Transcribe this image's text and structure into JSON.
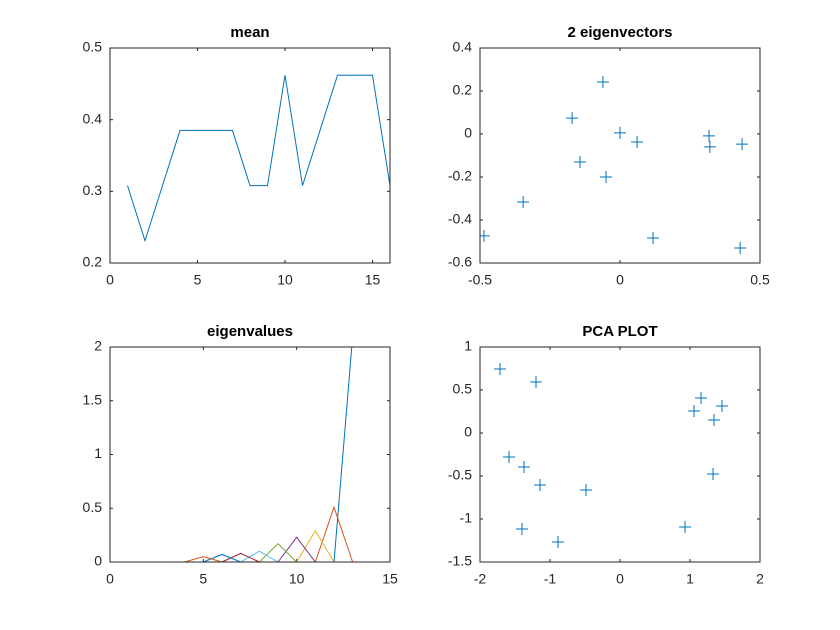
{
  "chart_data": [
    {
      "type": "line",
      "title": "mean",
      "x": [
        1,
        2,
        3,
        4,
        5,
        6,
        7,
        8,
        9,
        10,
        11,
        12,
        13,
        14,
        15,
        16
      ],
      "values": [
        0.308,
        0.231,
        0.308,
        0.385,
        0.385,
        0.385,
        0.385,
        0.308,
        0.308,
        0.462,
        0.308,
        0.385,
        0.462,
        0.462,
        0.462,
        0.308
      ],
      "color": "#0072BD",
      "xlim": [
        0,
        16
      ],
      "ylim": [
        0.2,
        0.5
      ],
      "xticks": [
        0,
        5,
        10,
        15
      ],
      "yticks": [
        0.2,
        0.3,
        0.4,
        0.5
      ]
    },
    {
      "type": "scatter",
      "title": "2 eigenvectors",
      "marker": "+",
      "color": "#0072BD",
      "x": [
        -0.486,
        -0.346,
        -0.171,
        -0.143,
        -0.061,
        -0.05,
        0.0,
        0.061,
        0.118,
        0.318,
        0.321,
        0.436,
        0.429
      ],
      "values": [
        -0.474,
        -0.316,
        0.074,
        -0.13,
        0.242,
        -0.2,
        0.005,
        -0.037,
        -0.484,
        -0.009,
        -0.06,
        -0.047,
        -0.53
      ],
      "xlim": [
        -0.5,
        0.5
      ],
      "ylim": [
        -0.6,
        0.4
      ],
      "xticks": [
        -0.5,
        0,
        0.5
      ],
      "yticks": [
        -0.6,
        -0.4,
        -0.2,
        0,
        0.2,
        0.4
      ]
    },
    {
      "type": "line",
      "title": "eigenvalues",
      "x": [
        1,
        2,
        3,
        4,
        5,
        6,
        7,
        8,
        9,
        10,
        11,
        12,
        13
      ],
      "series": [
        {
          "color": "#0072BD",
          "values": [
            0,
            0,
            0,
            0,
            0,
            0,
            0,
            0,
            0,
            0,
            0,
            0,
            2.1
          ]
        },
        {
          "color": "#D95319",
          "values": [
            0,
            0,
            0,
            0,
            0,
            0,
            0,
            0,
            0,
            0,
            0,
            0.51,
            0
          ]
        },
        {
          "color": "#EDB120",
          "values": [
            0,
            0,
            0,
            0,
            0,
            0,
            0,
            0,
            0,
            0,
            0.29,
            0,
            0
          ]
        },
        {
          "color": "#7E2F8E",
          "values": [
            0,
            0,
            0,
            0,
            0,
            0,
            0,
            0,
            0,
            0.23,
            0,
            0,
            0
          ]
        },
        {
          "color": "#77AC30",
          "values": [
            0,
            0,
            0,
            0,
            0,
            0,
            0,
            0,
            0.17,
            0,
            0,
            0,
            0
          ]
        },
        {
          "color": "#4DBEEE",
          "values": [
            0,
            0,
            0,
            0,
            0,
            0,
            0,
            0.1,
            0,
            0,
            0,
            0,
            0
          ]
        },
        {
          "color": "#A2142F",
          "values": [
            0,
            0,
            0,
            0,
            0,
            0,
            0.08,
            0,
            0,
            0,
            0,
            0,
            0
          ]
        },
        {
          "color": "#0072BD",
          "values": [
            0,
            0,
            0,
            0,
            0,
            0.07,
            0,
            0,
            0,
            0,
            0,
            0,
            0
          ]
        },
        {
          "color": "#D95319",
          "values": [
            0,
            0,
            0,
            0,
            0.05,
            0,
            0,
            0,
            0,
            0,
            0,
            0,
            0
          ]
        }
      ],
      "xlim": [
        0,
        15
      ],
      "ylim": [
        0,
        2
      ],
      "xticks": [
        0,
        5,
        10,
        15
      ],
      "yticks": [
        0,
        0.5,
        1,
        1.5,
        2
      ]
    },
    {
      "type": "scatter",
      "title": "PCA PLOT",
      "marker": "+",
      "color": "#0072BD",
      "x": [
        -1.714,
        -1.586,
        -1.371,
        -1.2,
        -1.143,
        -1.4,
        -0.886,
        -0.486,
        0.929,
        1.057,
        1.157,
        1.329,
        1.343,
        1.457
      ],
      "values": [
        0.744,
        -0.279,
        -0.395,
        0.593,
        -0.605,
        -1.116,
        -1.267,
        -0.663,
        -1.093,
        0.256,
        0.407,
        -0.477,
        0.151,
        0.314
      ],
      "xlim": [
        -2,
        2
      ],
      "ylim": [
        -1.5,
        1
      ],
      "xticks": [
        -2,
        -1,
        0,
        1,
        2
      ],
      "yticks": [
        -1.5,
        -1,
        -0.5,
        0,
        0.5,
        1
      ]
    }
  ]
}
